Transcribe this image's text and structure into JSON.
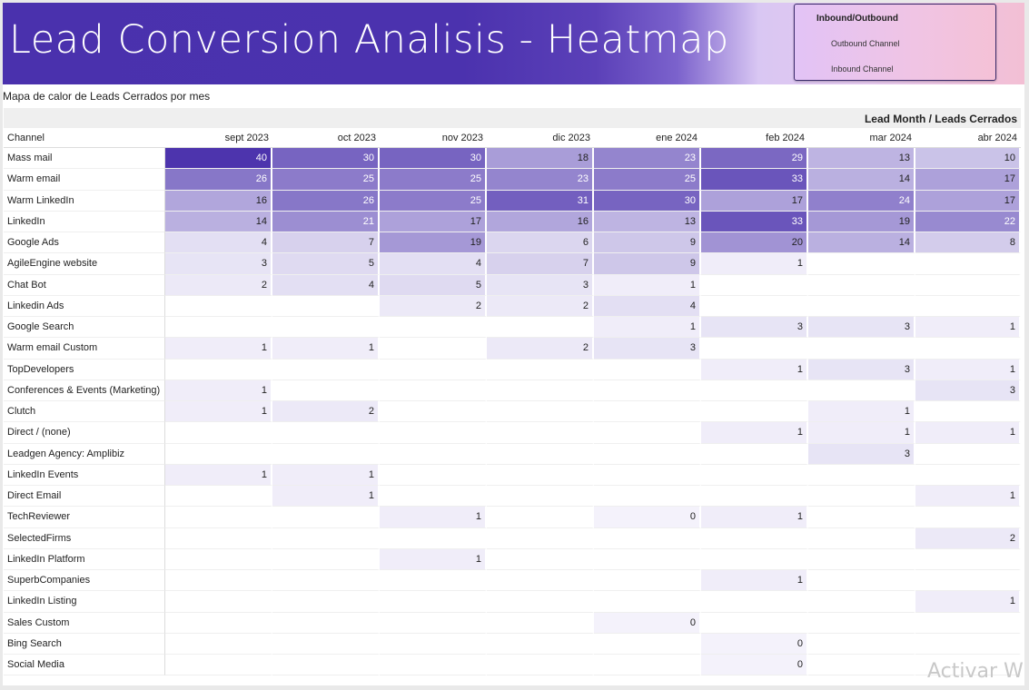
{
  "banner": {
    "title": "Lead Conversion Analisis - Heatmap"
  },
  "filter": {
    "title": "Inbound/Outbound",
    "options": [
      "Outbound Channel",
      "Inbound Channel"
    ]
  },
  "subtitle": "Mapa de calor de Leads Cerrados por mes",
  "table": {
    "header_title": "Lead Month / Leads Cerrados",
    "channel_header": "Channel",
    "months": [
      "sept 2023",
      "oct 2023",
      "nov 2023",
      "dic 2023",
      "ene 2024",
      "feb 2024",
      "mar 2024",
      "abr 2024"
    ],
    "rows": [
      {
        "channel": "Mass mail",
        "values": [
          "40",
          "30",
          "30",
          "18",
          "23",
          "29",
          "13",
          "10"
        ]
      },
      {
        "channel": "Warm email",
        "values": [
          "26",
          "25",
          "25",
          "23",
          "25",
          "33",
          "14",
          "17"
        ]
      },
      {
        "channel": "Warm LinkedIn",
        "values": [
          "16",
          "26",
          "25",
          "31",
          "30",
          "17",
          "24",
          "17"
        ]
      },
      {
        "channel": "LinkedIn",
        "values": [
          "14",
          "21",
          "17",
          "16",
          "13",
          "33",
          "19",
          "22"
        ]
      },
      {
        "channel": "Google Ads",
        "values": [
          "4",
          "7",
          "19",
          "6",
          "9",
          "20",
          "14",
          "8"
        ]
      },
      {
        "channel": "AgileEngine website",
        "values": [
          "3",
          "5",
          "4",
          "7",
          "9",
          "1",
          "",
          ""
        ]
      },
      {
        "channel": "Chat Bot",
        "values": [
          "2",
          "4",
          "5",
          "3",
          "1",
          "",
          "",
          ""
        ]
      },
      {
        "channel": "Linkedin Ads",
        "values": [
          "",
          "",
          "2",
          "2",
          "4",
          "",
          "",
          ""
        ]
      },
      {
        "channel": "Google Search",
        "values": [
          "",
          "",
          "",
          "",
          "1",
          "3",
          "3",
          "1"
        ]
      },
      {
        "channel": "Warm email Custom",
        "values": [
          "1",
          "1",
          "",
          "2",
          "3",
          "",
          "",
          ""
        ]
      },
      {
        "channel": "TopDevelopers",
        "values": [
          "",
          "",
          "",
          "",
          "",
          "1",
          "3",
          "1"
        ]
      },
      {
        "channel": "Conferences & Events (Marketing)",
        "values": [
          "1",
          "",
          "",
          "",
          "",
          "",
          "",
          "3"
        ]
      },
      {
        "channel": "Clutch",
        "values": [
          "1",
          "2",
          "",
          "",
          "",
          "",
          "1",
          ""
        ]
      },
      {
        "channel": "Direct / (none)",
        "values": [
          "",
          "",
          "",
          "",
          "",
          "1",
          "1",
          "1"
        ]
      },
      {
        "channel": "Leadgen Agency: Amplibiz",
        "values": [
          "",
          "",
          "",
          "",
          "",
          "",
          "3",
          ""
        ]
      },
      {
        "channel": "LinkedIn Events",
        "values": [
          "1",
          "1",
          "",
          "",
          "",
          "",
          "",
          ""
        ]
      },
      {
        "channel": "Direct Email",
        "values": [
          "",
          "1",
          "",
          "",
          "",
          "",
          "",
          "1"
        ]
      },
      {
        "channel": "TechReviewer",
        "values": [
          "",
          "",
          "1",
          "",
          "0",
          "1",
          "",
          ""
        ]
      },
      {
        "channel": "SelectedFirms",
        "values": [
          "",
          "",
          "",
          "",
          "",
          "",
          "",
          "2"
        ]
      },
      {
        "channel": "LinkedIn Platform",
        "values": [
          "",
          "",
          "1",
          "",
          "",
          "",
          "",
          ""
        ]
      },
      {
        "channel": "SuperbCompanies",
        "values": [
          "",
          "",
          "",
          "",
          "",
          "1",
          "",
          ""
        ]
      },
      {
        "channel": "LinkedIn Listing",
        "values": [
          "",
          "",
          "",
          "",
          "",
          "",
          "",
          "1"
        ]
      },
      {
        "channel": "Sales Custom",
        "values": [
          "",
          "",
          "",
          "",
          "0",
          "",
          "",
          ""
        ]
      },
      {
        "channel": "Bing Search",
        "values": [
          "",
          "",
          "",
          "",
          "",
          "0",
          "",
          ""
        ]
      },
      {
        "channel": "Social Media",
        "values": [
          "",
          "",
          "",
          "",
          "",
          "0",
          "",
          ""
        ]
      }
    ],
    "colors": {
      "high": "#4d34ad",
      "low": "#f4f2fb",
      "empty": "#ffffff"
    },
    "max_value": 40
  },
  "watermark": "Activar Wi"
}
